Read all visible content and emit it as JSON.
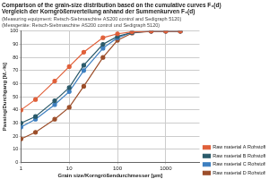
{
  "chart_data": {
    "type": "line",
    "title": [
      "Comparison of the grain-size distribution based on the cumulative curves F₃(d)",
      "Vergleich der Korngrößenverteilung anhand der Summenkurven F₃(d)"
    ],
    "subtitle": [
      "(Measuring equipment: Retsch-Siebmaschine AS200 control and Sedigraph 5120)",
      "(Messgeräte: Retsch-Siebmaschine AS200 control und Sedigraph 5120)"
    ],
    "x_label": "Grain size/Korngrößendurchmesser [µm]",
    "y_label": "Passing/Durchgang [M.-%]",
    "x": [
      1,
      2,
      5,
      10,
      20,
      50,
      100,
      200,
      500,
      1000,
      2000
    ],
    "series": [
      {
        "name": "Raw material A Rohstoff A",
        "color": "#e0603a",
        "values": [
          40,
          48,
          62,
          73,
          84,
          95,
          98,
          99.5,
          100,
          100,
          100
        ]
      },
      {
        "name": "Raw material B Rohstoff B",
        "color": "#2a5a6a",
        "values": [
          30,
          35,
          47,
          57,
          74,
          90,
          96,
          99,
          100,
          100,
          100
        ]
      },
      {
        "name": "Raw material C Rohstoff C",
        "color": "#3d7fc0",
        "values": [
          27,
          33,
          44,
          54,
          70,
          87,
          95,
          99,
          100,
          100,
          100
        ]
      },
      {
        "name": "Raw material D Rohstoff D",
        "color": "#9c4e2a",
        "values": [
          18,
          23,
          33,
          42,
          58,
          80,
          93,
          98.5,
          100,
          100,
          100
        ]
      }
    ],
    "xlim": [
      1,
      5000
    ],
    "xticks": [
      1,
      10,
      100,
      1000
    ],
    "ylim": [
      0,
      100
    ],
    "yticks": [
      0,
      10,
      20,
      30,
      40,
      50,
      60,
      70,
      80,
      90,
      100
    ],
    "log": "x",
    "grid": true,
    "legend": "right",
    "marker": "circle"
  }
}
